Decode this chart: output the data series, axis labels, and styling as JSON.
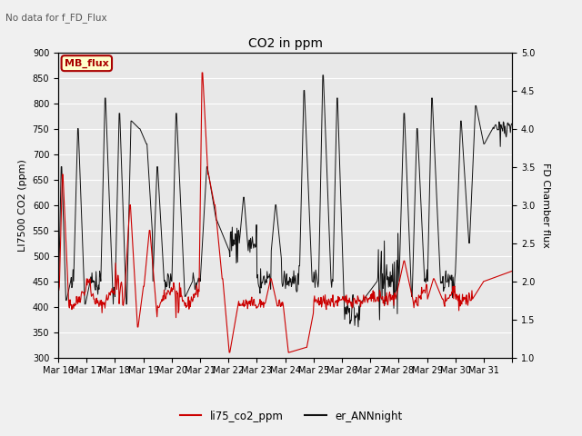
{
  "title": "CO2 in ppm",
  "top_left_text": "No data for f_FD_Flux",
  "ylabel_left": "LI7500 CO2 (ppm)",
  "ylabel_right": "FD Chamber flux",
  "ylim_left": [
    300,
    900
  ],
  "ylim_right": [
    1.0,
    5.0
  ],
  "yticks_left": [
    300,
    350,
    400,
    450,
    500,
    550,
    600,
    650,
    700,
    750,
    800,
    850,
    900
  ],
  "yticks_right": [
    1.0,
    1.5,
    2.0,
    2.5,
    3.0,
    3.5,
    4.0,
    4.5,
    5.0
  ],
  "xtick_labels": [
    "Mar 16",
    "Mar 17",
    "Mar 18",
    "Mar 19",
    "Mar 20",
    "Mar 21",
    "Mar 22",
    "Mar 23",
    "Mar 24",
    "Mar 25",
    "Mar 26",
    "Mar 27",
    "Mar 28",
    "Mar 29",
    "Mar 30",
    "Mar 31"
  ],
  "legend_label_red": "li75_co2_ppm",
  "legend_label_black": "er_ANNnight",
  "legend_box_label": "MB_flux",
  "background_color": "#f0f0f0",
  "plot_bg_color": "#e8e8e8",
  "line_color_red": "#cc0000",
  "line_color_black": "#111111",
  "grid_color": "#ffffff",
  "mb_box_facecolor": "#ffffcc",
  "mb_box_edgecolor": "#aa0000",
  "mb_text_color": "#aa0000"
}
